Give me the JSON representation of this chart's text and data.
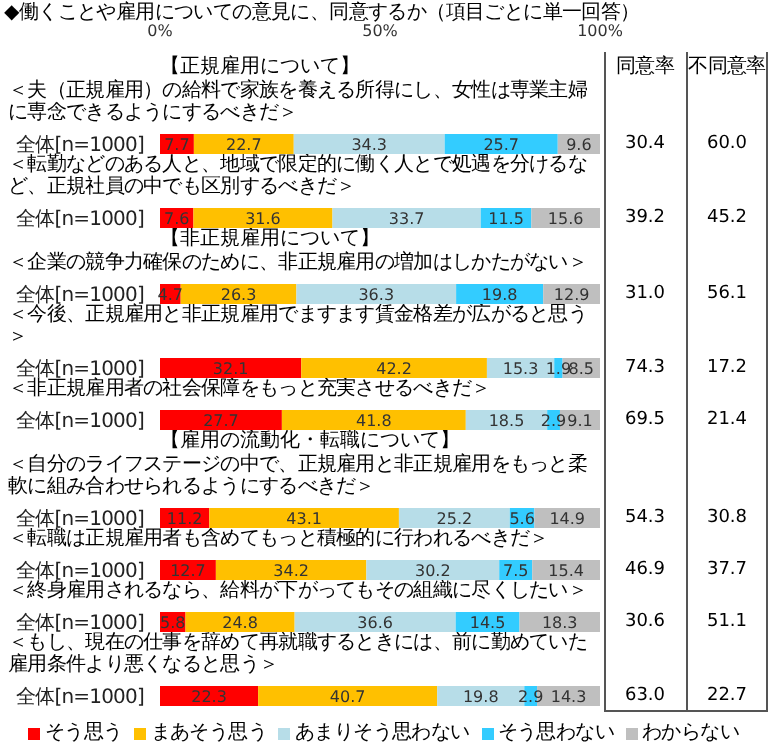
{
  "chart_data": {
    "type": "bar",
    "orientation": "horizontal",
    "stacked": true,
    "title": "◆働くことや雇用についての意見に、同意するか（項目ごとに単一回答）",
    "categories": [
      "全体[n=1000]",
      "全体[n=1000]",
      "全体[n=1000]",
      "全体[n=1000]",
      "全体[n=1000]",
      "全体[n=1000]",
      "全体[n=1000]",
      "全体[n=1000]",
      "全体[n=1000]"
    ],
    "series": [
      {
        "name": "そう思う",
        "color": "#ff0000",
        "values": [
          7.7,
          7.6,
          4.7,
          32.1,
          27.7,
          11.2,
          12.7,
          5.8,
          22.3
        ]
      },
      {
        "name": "まあそう思う",
        "color": "#ffc000",
        "values": [
          22.7,
          31.6,
          26.3,
          42.2,
          41.8,
          43.1,
          34.2,
          24.8,
          40.7
        ]
      },
      {
        "name": "あまりそう思わない",
        "color": "#b7dde8",
        "values": [
          34.3,
          33.7,
          36.3,
          15.3,
          18.5,
          25.2,
          30.2,
          36.6,
          19.8
        ]
      },
      {
        "name": "そう思わない",
        "color": "#33ccff",
        "values": [
          25.7,
          11.5,
          19.8,
          1.9,
          2.9,
          5.6,
          7.5,
          14.5,
          2.9
        ]
      },
      {
        "name": "わからない",
        "color": "#bfbfbf",
        "values": [
          9.6,
          15.6,
          12.9,
          8.5,
          9.1,
          14.9,
          15.4,
          18.3,
          14.3
        ]
      }
    ],
    "xlim": [
      0,
      100
    ],
    "xticks": [
      {
        "value": 0,
        "label": "0%"
      },
      {
        "value": 50,
        "label": "50%"
      },
      {
        "value": 100,
        "label": "100%"
      }
    ],
    "data_labels": true,
    "legend": "bottom",
    "annotations": [
      "【正規雇用について】",
      "＜夫（正規雇用）の給料で家族を養える所得にし、女性は専業主婦に専念できるようにするべきだ＞",
      "＜転勤などのある人と、地域で限定的に働く人とで処遇を分けるなど、正規社員の中でも区別するべきだ＞",
      "【非正規雇用について】",
      "＜企業の競争力確保のために、非正規雇用の増加はしかたがない＞",
      "＜今後、正規雇用と非正規雇用でますます賃金格差が広がると思う＞",
      "＜非正規雇用者の社会保障をもっと充実させるべきだ＞",
      "【雇用の流動化・転職について】",
      "＜自分のライフステージの中で、正規雇用と非正規雇用をもっと柔軟に組み合わせられるようにするべきだ＞",
      "＜転職は正規雇用者も含めてもっと積極的に行われるべきだ＞",
      "＜終身雇用されるなら、給料が下がってもその組織に尽くしたい＞",
      "＜もし、現在の仕事を辞めて再就職するときには、前に勤めていた雇用条件より悪くなると思う＞",
      "同意率",
      "不同意率",
      "30.4",
      "60.0",
      "39.2",
      "45.2",
      "31.0",
      "56.1",
      "74.3",
      "17.2",
      "69.5",
      "21.4",
      "54.3",
      "30.8",
      "46.9",
      "37.7",
      "30.6",
      "51.1",
      "63.0",
      "22.7"
    ]
  }
}
